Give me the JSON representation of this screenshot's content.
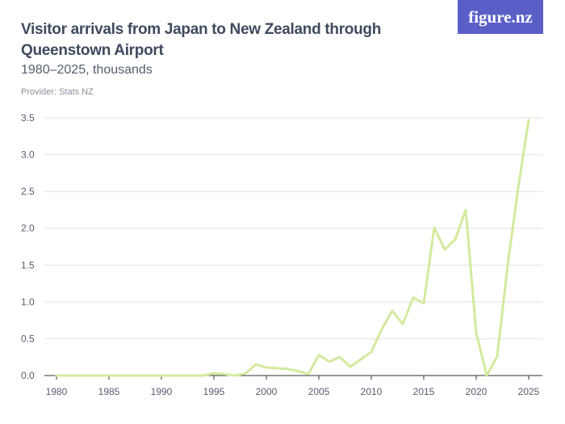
{
  "logo": {
    "text": "figure.nz"
  },
  "provider": "Provider: Stats NZ",
  "colors": {
    "line": "#d3ea9e",
    "grid": "#e2e2e2",
    "axis": "#333333",
    "logo_bg": "#5a5fc8"
  },
  "chart_data": {
    "type": "line",
    "title": "Visitor arrivals from Japan to New Zealand through Queenstown Airport",
    "subtitle": "1980–2025, thousands",
    "xlabel": "",
    "ylabel": "",
    "xlim": [
      1980,
      2025
    ],
    "ylim": [
      0,
      3.5
    ],
    "grid": true,
    "x_ticks": [
      "1980",
      "1985",
      "1990",
      "1995",
      "2000",
      "2005",
      "2010",
      "2015",
      "2020",
      "2025"
    ],
    "y_ticks": [
      "0.0",
      "0.5",
      "1.0",
      "1.5",
      "2.0",
      "2.5",
      "3.0",
      "3.5"
    ],
    "series": [
      {
        "x": [
          1980,
          1981,
          1982,
          1983,
          1984,
          1985,
          1986,
          1987,
          1988,
          1989,
          1990,
          1991,
          1992,
          1993,
          1994,
          1995,
          1996,
          1997,
          1998,
          1999,
          2000,
          2001,
          2002,
          2003,
          2004,
          2005,
          2006,
          2007,
          2008,
          2009,
          2010,
          2011,
          2012,
          2013,
          2014,
          2015,
          2016,
          2017,
          2018,
          2019,
          2020,
          2021,
          2022,
          2023,
          2024,
          2025
        ],
        "y": [
          0,
          0,
          0,
          0,
          0,
          0,
          0,
          0,
          0,
          0,
          0,
          0,
          0,
          0,
          0,
          0.03,
          0.02,
          0,
          0.03,
          0.15,
          0.11,
          0.1,
          0.09,
          0.06,
          0.02,
          0.28,
          0.19,
          0.25,
          0.12,
          0.22,
          0.32,
          0.63,
          0.88,
          0.7,
          1.06,
          0.98,
          2.01,
          1.71,
          1.85,
          2.25,
          0.58,
          0,
          0.26,
          1.5,
          2.55,
          3.47
        ]
      }
    ]
  }
}
